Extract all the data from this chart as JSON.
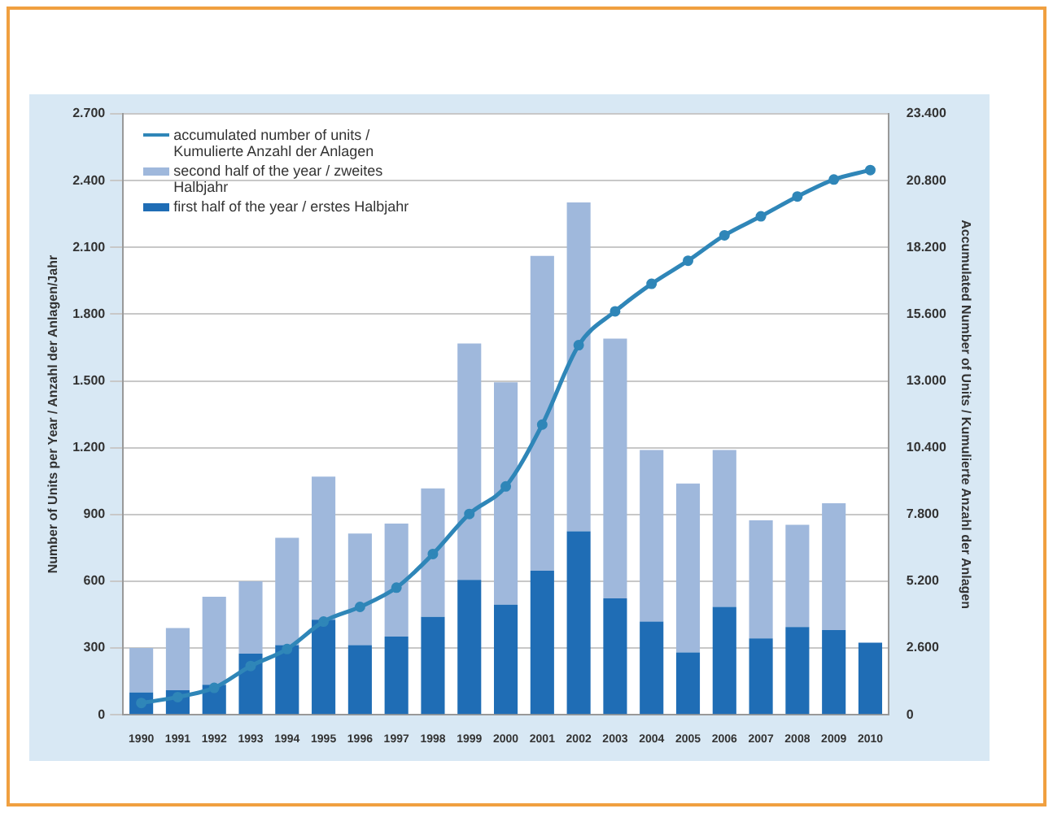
{
  "chart_data": {
    "type": "bar",
    "stacked": true,
    "categories": [
      "1990",
      "1991",
      "1992",
      "1993",
      "1994",
      "1995",
      "1996",
      "1997",
      "1998",
      "1999",
      "2000",
      "2001",
      "2002",
      "2003",
      "2004",
      "2005",
      "2006",
      "2007",
      "2008",
      "2009",
      "2010"
    ],
    "series": [
      {
        "name": "first half of the year / erstes Halbjahr",
        "color": "#1f6db5",
        "values": [
          100,
          110,
          135,
          275,
          313,
          427,
          313,
          351,
          440,
          606,
          495,
          647,
          824,
          523,
          419,
          280,
          485,
          343,
          394,
          381,
          324
        ]
      },
      {
        "name": "second half of the year / zweites Halbjahr",
        "color": "#9fb8dc",
        "values": [
          200,
          280,
          395,
          325,
          482,
          643,
          501,
          508,
          577,
          1062,
          999,
          1415,
          1478,
          1167,
          771,
          759,
          705,
          531,
          460,
          569,
          0
        ]
      },
      {
        "name": "accumulated number of units / Kumulierte Anzahl der Anlagen",
        "type": "line",
        "axis": "y2",
        "color": "#2f86b8",
        "marker": "circle",
        "values": [
          460,
          690,
          1050,
          1900,
          2560,
          3630,
          4200,
          4950,
          6260,
          7820,
          8890,
          11300,
          14390,
          15710,
          16780,
          17680,
          18670,
          19410,
          20180,
          20840,
          21210
        ]
      }
    ],
    "ylabel": "Number of Units per Year / Anzahl der Anlagen/Jahr",
    "y2label": "Accumulated Number of Units / Kumulierte Anzahl der Anlagen",
    "ylim": [
      0,
      2700
    ],
    "yticks": [
      0,
      {
        "value": 300,
        "label": "300"
      },
      {
        "value": 600,
        "label": "600"
      },
      {
        "value": 900,
        "label": "900"
      },
      {
        "value": 1200,
        "label": "1.200"
      },
      {
        "value": 1500,
        "label": "1.500"
      },
      {
        "value": 1800,
        "label": "1.800"
      },
      {
        "value": 2100,
        "label": "2.100"
      },
      {
        "value": 2400,
        "label": "2.400"
      },
      {
        "value": 2700,
        "label": "2.700"
      }
    ],
    "y2lim": [
      0,
      23400
    ],
    "y2ticks": [
      0,
      {
        "value": 2600,
        "label": "2.600"
      },
      {
        "value": 5200,
        "label": "5.200"
      },
      {
        "value": 7800,
        "label": "7.800"
      },
      {
        "value": 10400,
        "label": "10.400"
      },
      {
        "value": 13000,
        "label": "13.000"
      },
      {
        "value": 15600,
        "label": "15.600"
      },
      {
        "value": 18200,
        "label": "18.200"
      },
      {
        "value": 20800,
        "label": "20.800"
      },
      {
        "value": 23400,
        "label": "23.400"
      }
    ],
    "grid": "y",
    "legend": "top left"
  }
}
